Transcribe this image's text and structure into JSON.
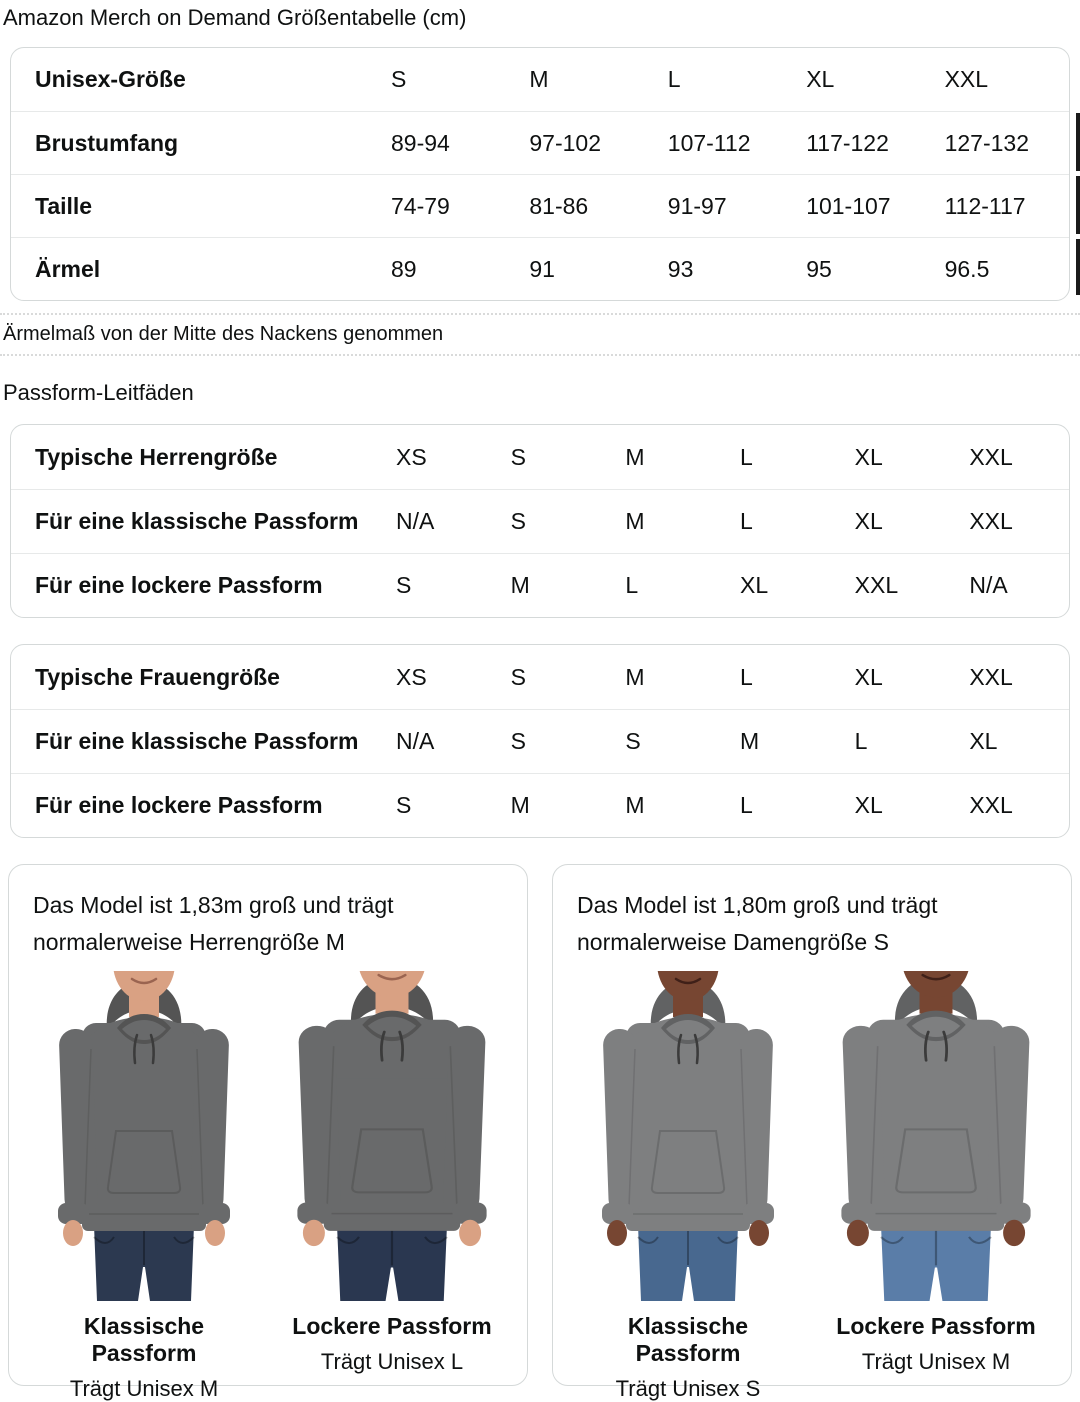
{
  "page": {
    "title": "Amazon Merch on Demand Größentabelle (cm)"
  },
  "size_table": {
    "rows": [
      {
        "label": "Unisex-Größe",
        "values": [
          "S",
          "M",
          "L",
          "XL",
          "XXL"
        ]
      },
      {
        "label": "Brustumfang",
        "values": [
          "89-94",
          "97-102",
          "107-112",
          "117-122",
          "127-132"
        ]
      },
      {
        "label": "Taille",
        "values": [
          "74-79",
          "81-86",
          "91-97",
          "101-107",
          "112-117"
        ]
      },
      {
        "label": "Ärmel",
        "values": [
          "89",
          "91",
          "93",
          "95",
          "96.5"
        ]
      }
    ]
  },
  "size_note": "Ärmelmaß von der Mitte des Nackens genommen",
  "fit_section": {
    "heading": "Passform-Leitfäden"
  },
  "mens_fit_table": {
    "rows": [
      {
        "label": "Typische Herrengröße",
        "values": [
          "XS",
          "S",
          "M",
          "L",
          "XL",
          "XXL"
        ]
      },
      {
        "label": "Für eine klassische Passform",
        "values": [
          "N/A",
          "S",
          "M",
          "L",
          "XL",
          "XXL"
        ]
      },
      {
        "label": "Für eine lockere Passform",
        "values": [
          "S",
          "M",
          "L",
          "XL",
          "XXL",
          "N/A"
        ]
      }
    ]
  },
  "womens_fit_table": {
    "rows": [
      {
        "label": "Typische Frauengröße",
        "values": [
          "XS",
          "S",
          "M",
          "L",
          "XL",
          "XXL"
        ]
      },
      {
        "label": "Für eine klassische Passform",
        "values": [
          "N/A",
          "S",
          "S",
          "M",
          "L",
          "XL"
        ]
      },
      {
        "label": "Für eine lockere Passform",
        "values": [
          "S",
          "M",
          "M",
          "L",
          "XL",
          "XXL"
        ]
      }
    ]
  },
  "model_cards": [
    {
      "description": "Das Model ist 1,83m groß und trägt normalerweise Herrengröße M",
      "models": [
        {
          "fit_label": "Klassische Passform",
          "size_label": "Trägt Unisex M"
        },
        {
          "fit_label": "Lockere Passform",
          "size_label": "Trägt Unisex L"
        }
      ],
      "colors": {
        "skin": "#d9a183",
        "mouth": "#9a6450",
        "hoodie": "#696a6b",
        "shade": "#545454",
        "jeans_classic": "#2c3950",
        "jeans_loose": "#2a3750"
      }
    },
    {
      "description": "Das Model ist 1,80m groß und trägt normalerweise Damengröße S",
      "models": [
        {
          "fit_label": "Klassische Passform",
          "size_label": "Trägt Unisex S"
        },
        {
          "fit_label": "Lockere Passform",
          "size_label": "Trägt Unisex M"
        }
      ],
      "colors": {
        "skin": "#774632",
        "mouth": "#3f2018",
        "hoodie": "#7e7f80",
        "shade": "#616263",
        "jeans_classic": "#48688f",
        "jeans_loose": "#5a7da8"
      }
    }
  ],
  "theme": {
    "text_color": "#0f1111",
    "table_border_color": "#d5d9d9",
    "row_divider_color": "#e7e9e9"
  }
}
